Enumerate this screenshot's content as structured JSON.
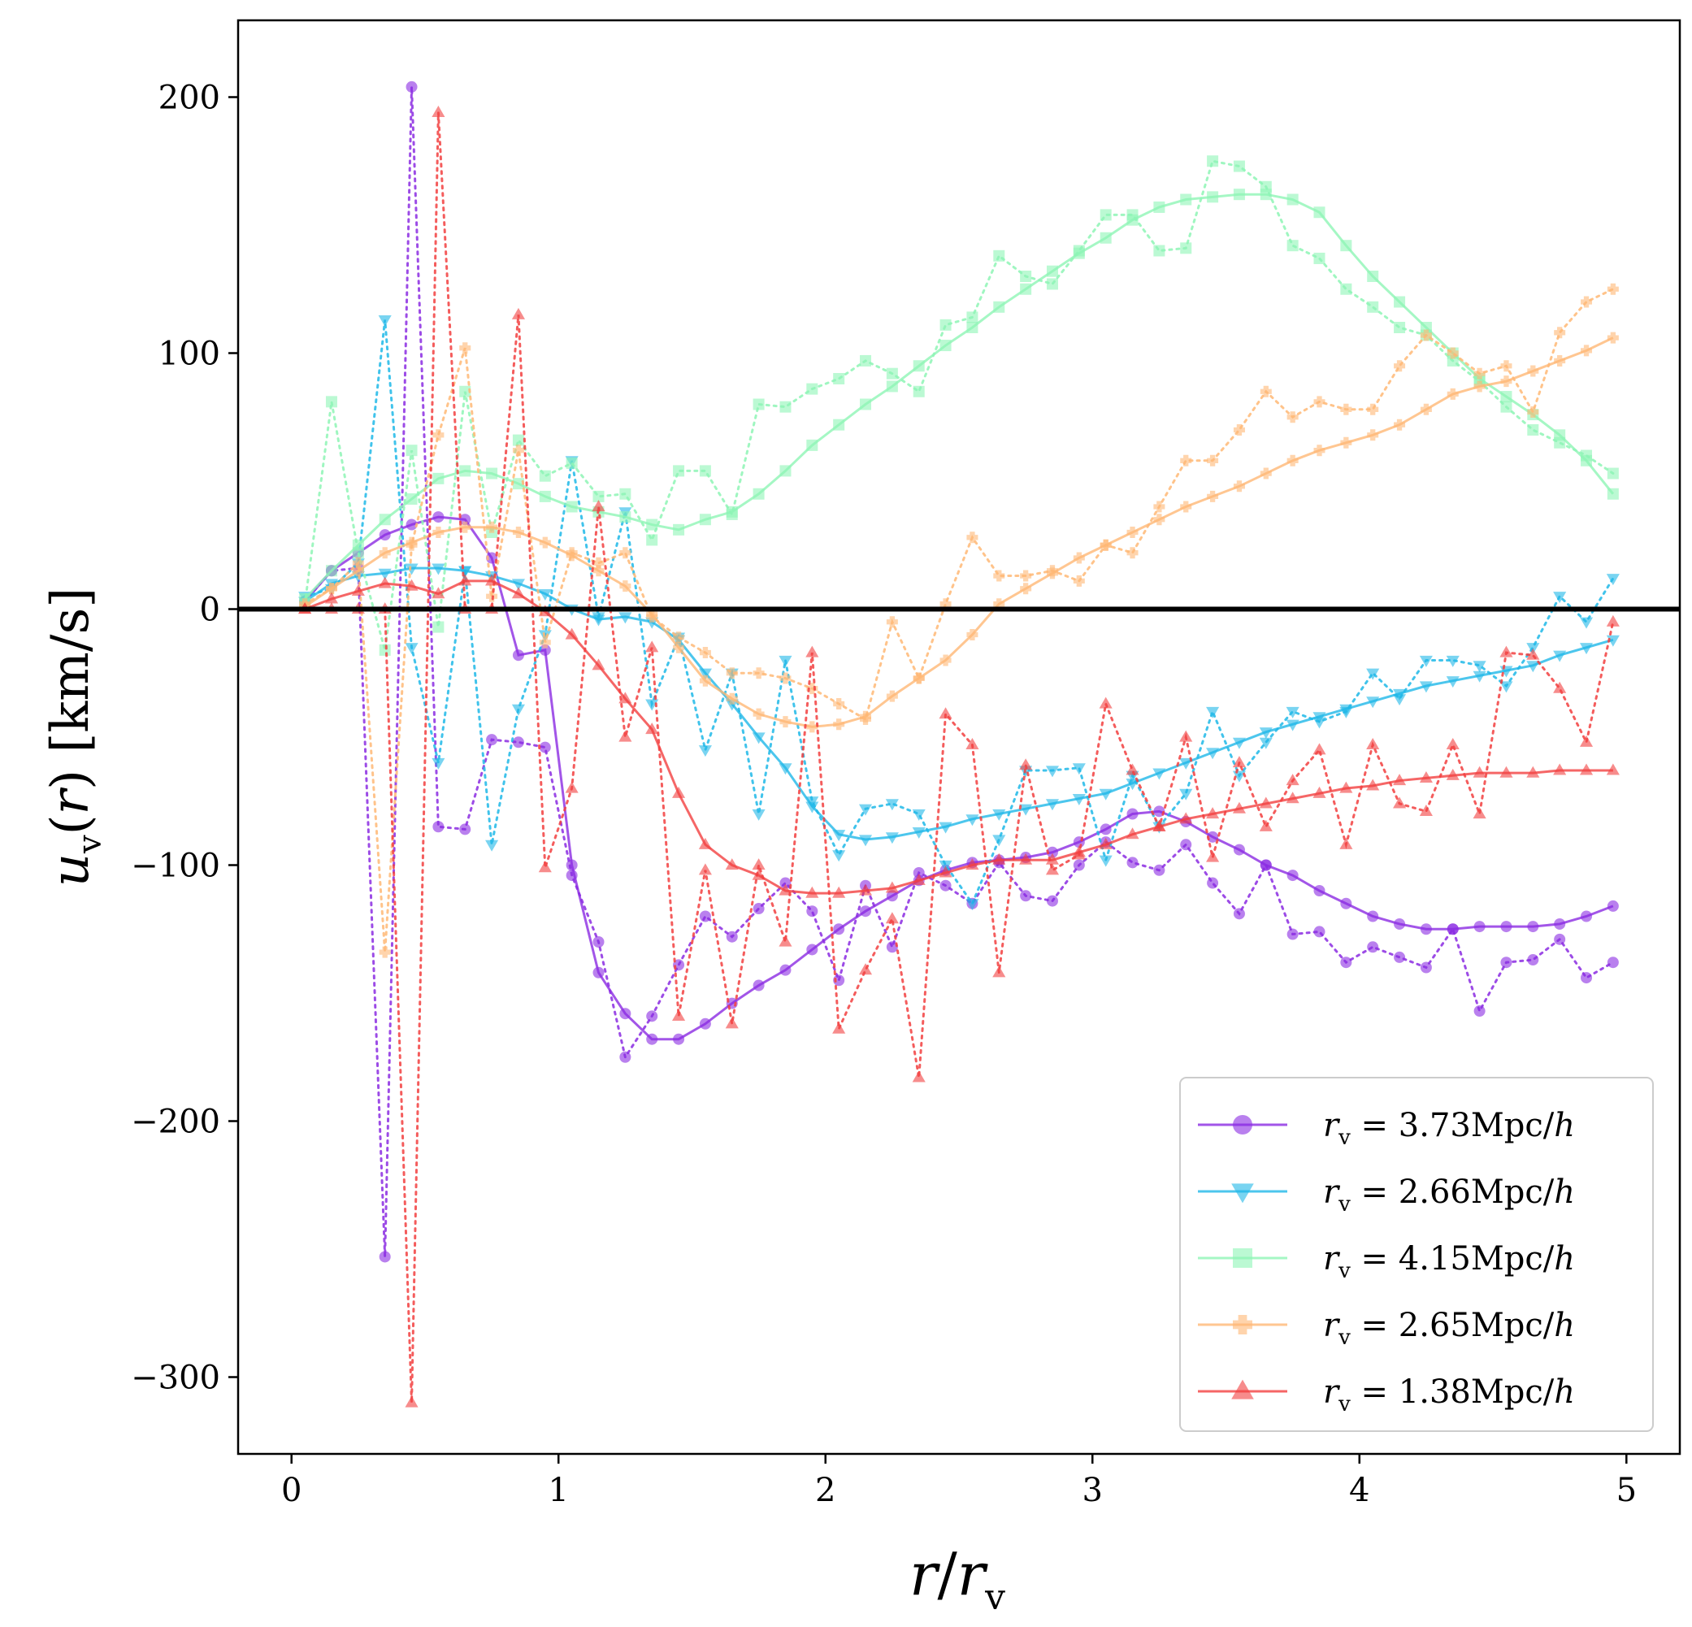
{
  "chart_data": {
    "type": "line",
    "xlabel": "r/r_v",
    "ylabel": "u_v(r) [km/s]",
    "xlim": [
      -0.2,
      5.2
    ],
    "ylim": [
      -330,
      230
    ],
    "xticks": [
      0,
      1,
      2,
      3,
      4,
      5
    ],
    "yticks": [
      -300,
      -200,
      -100,
      0,
      100,
      200
    ],
    "xtick_labels": [
      "0",
      "1",
      "2",
      "3",
      "4",
      "5"
    ],
    "ytick_labels": [
      "−300",
      "−200",
      "−100",
      "0",
      "100",
      "200"
    ],
    "zero_line": true,
    "grid": false,
    "legend_position": "lower-right",
    "x": [
      0.05,
      0.15,
      0.25,
      0.35,
      0.45,
      0.55,
      0.65,
      0.75,
      0.85,
      0.95,
      1.05,
      1.15,
      1.25,
      1.35,
      1.45,
      1.55,
      1.65,
      1.75,
      1.85,
      1.95,
      2.05,
      2.15,
      2.25,
      2.35,
      2.45,
      2.55,
      2.65,
      2.75,
      2.85,
      2.95,
      3.05,
      3.15,
      3.25,
      3.35,
      3.45,
      3.55,
      3.65,
      3.75,
      3.85,
      3.95,
      4.05,
      4.15,
      4.25,
      4.35,
      4.45,
      4.55,
      4.65,
      4.75,
      4.85,
      4.95
    ],
    "series": [
      {
        "name": "r_v = 3.73Mpc/h",
        "label_value": "3.73Mpc/",
        "color": "#8b2be2",
        "marker": "circle",
        "raw": [
          3,
          15,
          16,
          -253,
          204,
          -85,
          -86,
          -51,
          -52,
          -54,
          -104,
          -130,
          -175,
          -159,
          -139,
          -120,
          -128,
          -117,
          -107,
          -118,
          -145,
          -108,
          -132,
          -103,
          -108,
          -115,
          -99,
          -112,
          -114,
          -100,
          -91,
          -99,
          -102,
          -92,
          -107,
          -119,
          -100,
          -127,
          -126,
          -138,
          -132,
          -136,
          -140,
          -125,
          -157,
          -138,
          -137,
          -129,
          -144,
          -138
        ],
        "smooth": [
          3,
          15,
          22,
          29,
          33,
          36,
          35,
          20,
          -18,
          -16,
          -100,
          -142,
          -158,
          -168,
          -168,
          -162,
          -154,
          -147,
          -141,
          -133,
          -125,
          -118,
          -112,
          -106,
          -102,
          -99,
          -98,
          -97,
          -95,
          -91,
          -86,
          -80,
          -79,
          -83,
          -89,
          -94,
          -100,
          -104,
          -110,
          -115,
          -120,
          -123,
          -125,
          -125,
          -124,
          -124,
          -124,
          -123,
          -120,
          -116
        ]
      },
      {
        "name": "r_v = 2.66Mpc/h",
        "label_value": "2.66Mpc/",
        "color": "#1fb8e8",
        "marker": "triangle-down",
        "raw": [
          5,
          8,
          18,
          113,
          -15,
          -60,
          15,
          -92,
          -39,
          -10,
          58,
          -3,
          38,
          -37,
          -11,
          -55,
          -25,
          -80,
          -20,
          -75,
          -96,
          -78,
          -76,
          -80,
          -100,
          -115,
          -90,
          -63,
          -63,
          -62,
          -98,
          -65,
          -85,
          -72,
          -40,
          -65,
          -52,
          -40,
          -44,
          -40,
          -25,
          -35,
          -20,
          -20,
          -22,
          -30,
          -15,
          5,
          -5,
          12
        ],
        "smooth": [
          3,
          10,
          13,
          14,
          16,
          16,
          15,
          13,
          10,
          6,
          0,
          -4,
          -3,
          -5,
          -12,
          -25,
          -37,
          -50,
          -62,
          -77,
          -88,
          -90,
          -89,
          -87,
          -85,
          -82,
          -80,
          -78,
          -76,
          -74,
          -72,
          -68,
          -64,
          -60,
          -56,
          -52,
          -48,
          -45,
          -42,
          -39,
          -36,
          -33,
          -30,
          -28,
          -26,
          -24,
          -22,
          -18,
          -15,
          -12
        ]
      },
      {
        "name": "r_v = 4.15Mpc/h",
        "label_value": "4.15Mpc/",
        "color": "#8ef5b5",
        "marker": "square",
        "raw": [
          2,
          81,
          22,
          -16,
          62,
          -7,
          85,
          30,
          66,
          52,
          57,
          44,
          45,
          27,
          54,
          54,
          37,
          80,
          79,
          86,
          90,
          97,
          92,
          85,
          111,
          114,
          138,
          130,
          127,
          140,
          154,
          154,
          140,
          141,
          175,
          173,
          165,
          142,
          137,
          125,
          118,
          110,
          107,
          97,
          89,
          79,
          70,
          65,
          60,
          53
        ],
        "smooth": [
          4,
          15,
          25,
          35,
          43,
          51,
          54,
          53,
          49,
          44,
          40,
          38,
          36,
          33,
          31,
          35,
          38,
          45,
          54,
          64,
          72,
          80,
          87,
          95,
          103,
          110,
          118,
          125,
          132,
          139,
          145,
          152,
          157,
          160,
          161,
          162,
          162,
          160,
          155,
          142,
          130,
          120,
          110,
          100,
          90,
          83,
          76,
          68,
          58,
          45
        ]
      },
      {
        "name": "r_v = 2.65Mpc/h",
        "label_value": "2.65Mpc/",
        "color": "#ffb875",
        "marker": "plus",
        "raw": [
          2,
          8,
          18,
          -134,
          25,
          68,
          102,
          5,
          62,
          -13,
          22,
          18,
          22,
          -3,
          -11,
          -17,
          -25,
          -25,
          -27,
          -31,
          -37,
          -43,
          -5,
          -27,
          2,
          28,
          13,
          13,
          15,
          11,
          25,
          22,
          40,
          58,
          58,
          70,
          85,
          75,
          81,
          78,
          78,
          95,
          107,
          100,
          92,
          95,
          77,
          108,
          120,
          125
        ],
        "smooth": [
          1,
          8,
          15,
          22,
          26,
          30,
          32,
          32,
          30,
          26,
          21,
          15,
          9,
          -2,
          -15,
          -28,
          -35,
          -41,
          -44,
          -46,
          -45,
          -42,
          -34,
          -27,
          -20,
          -10,
          2,
          8,
          14,
          20,
          25,
          30,
          35,
          40,
          44,
          48,
          53,
          58,
          62,
          65,
          68,
          72,
          78,
          84,
          87,
          89,
          93,
          97,
          101,
          106
        ]
      },
      {
        "name": "r_v = 1.38Mpc/h",
        "label_value": "1.38Mpc/",
        "color": "#f24040",
        "marker": "triangle-up",
        "raw": [
          0,
          0,
          0,
          0,
          -310,
          194,
          0,
          0,
          115,
          -101,
          -70,
          40,
          -50,
          -15,
          -159,
          -102,
          -162,
          -100,
          -130,
          -17,
          -164,
          -141,
          -121,
          -183,
          -41,
          -53,
          -142,
          -61,
          -102,
          -96,
          -37,
          -63,
          -85,
          -50,
          -97,
          -60,
          -85,
          -67,
          -55,
          -92,
          -53,
          -76,
          -79,
          -53,
          -80,
          -17,
          -18,
          -31,
          -52,
          -5
        ],
        "smooth": [
          0,
          4,
          7,
          10,
          9,
          6,
          11,
          11,
          6,
          -1,
          -10,
          -22,
          -35,
          -47,
          -72,
          -92,
          -100,
          -104,
          -110,
          -111,
          -111,
          -110,
          -109,
          -106,
          -103,
          -100,
          -98,
          -98,
          -98,
          -95,
          -92,
          -88,
          -85,
          -82,
          -80,
          -78,
          -76,
          -74,
          -72,
          -70,
          -69,
          -67,
          -66,
          -65,
          -64,
          -64,
          -64,
          -63,
          -63,
          -63
        ]
      }
    ],
    "legend": {
      "prefix": "r",
      "subscript": "v",
      "suffix": "h"
    }
  }
}
